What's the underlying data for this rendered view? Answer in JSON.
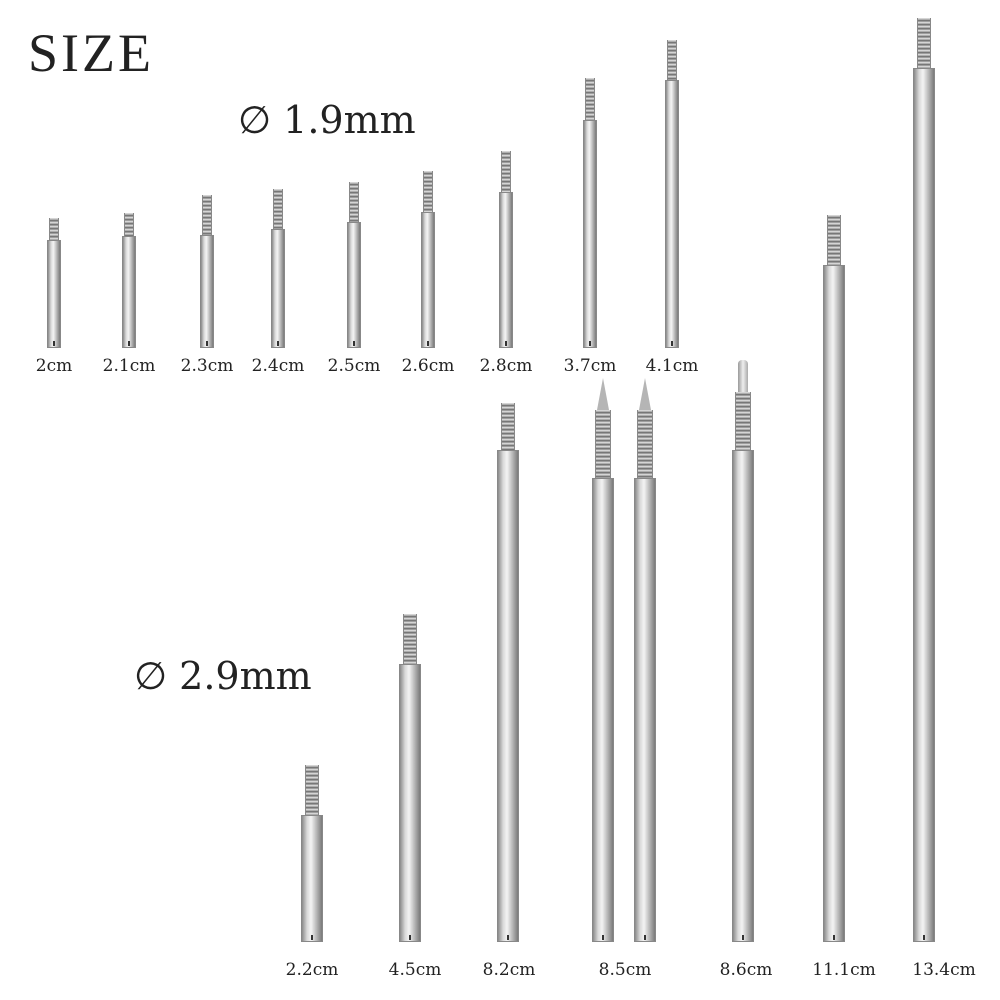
{
  "title": "SIZE",
  "groups": [
    {
      "diameter": "∅ 1.9mm",
      "rods": [
        {
          "label": "2cm",
          "length_cm": 2.0
        },
        {
          "label": "2.1cm",
          "length_cm": 2.1
        },
        {
          "label": "2.3cm",
          "length_cm": 2.3
        },
        {
          "label": "2.4cm",
          "length_cm": 2.4
        },
        {
          "label": "2.5cm",
          "length_cm": 2.5
        },
        {
          "label": "2.6cm",
          "length_cm": 2.6
        },
        {
          "label": "2.8cm",
          "length_cm": 2.8
        },
        {
          "label": "3.7cm",
          "length_cm": 3.7
        },
        {
          "label": "4.1cm",
          "length_cm": 4.1
        }
      ]
    },
    {
      "diameter": "∅ 2.9mm",
      "rods": [
        {
          "label": "2.2cm",
          "length_cm": 2.2,
          "tip": "threaded"
        },
        {
          "label": "4.5cm",
          "length_cm": 4.5,
          "tip": "threaded"
        },
        {
          "label": "8.2cm",
          "length_cm": 8.2,
          "tip": "threaded"
        },
        {
          "label": "8.5cm",
          "length_cm": 8.5,
          "tip": "pointed",
          "count": 2
        },
        {
          "label": "8.6cm",
          "length_cm": 8.6,
          "tip": "pin"
        },
        {
          "label": "11.1cm",
          "length_cm": 11.1,
          "tip": "threaded"
        },
        {
          "label": "13.4cm",
          "length_cm": 13.4,
          "tip": "threaded"
        }
      ]
    }
  ]
}
